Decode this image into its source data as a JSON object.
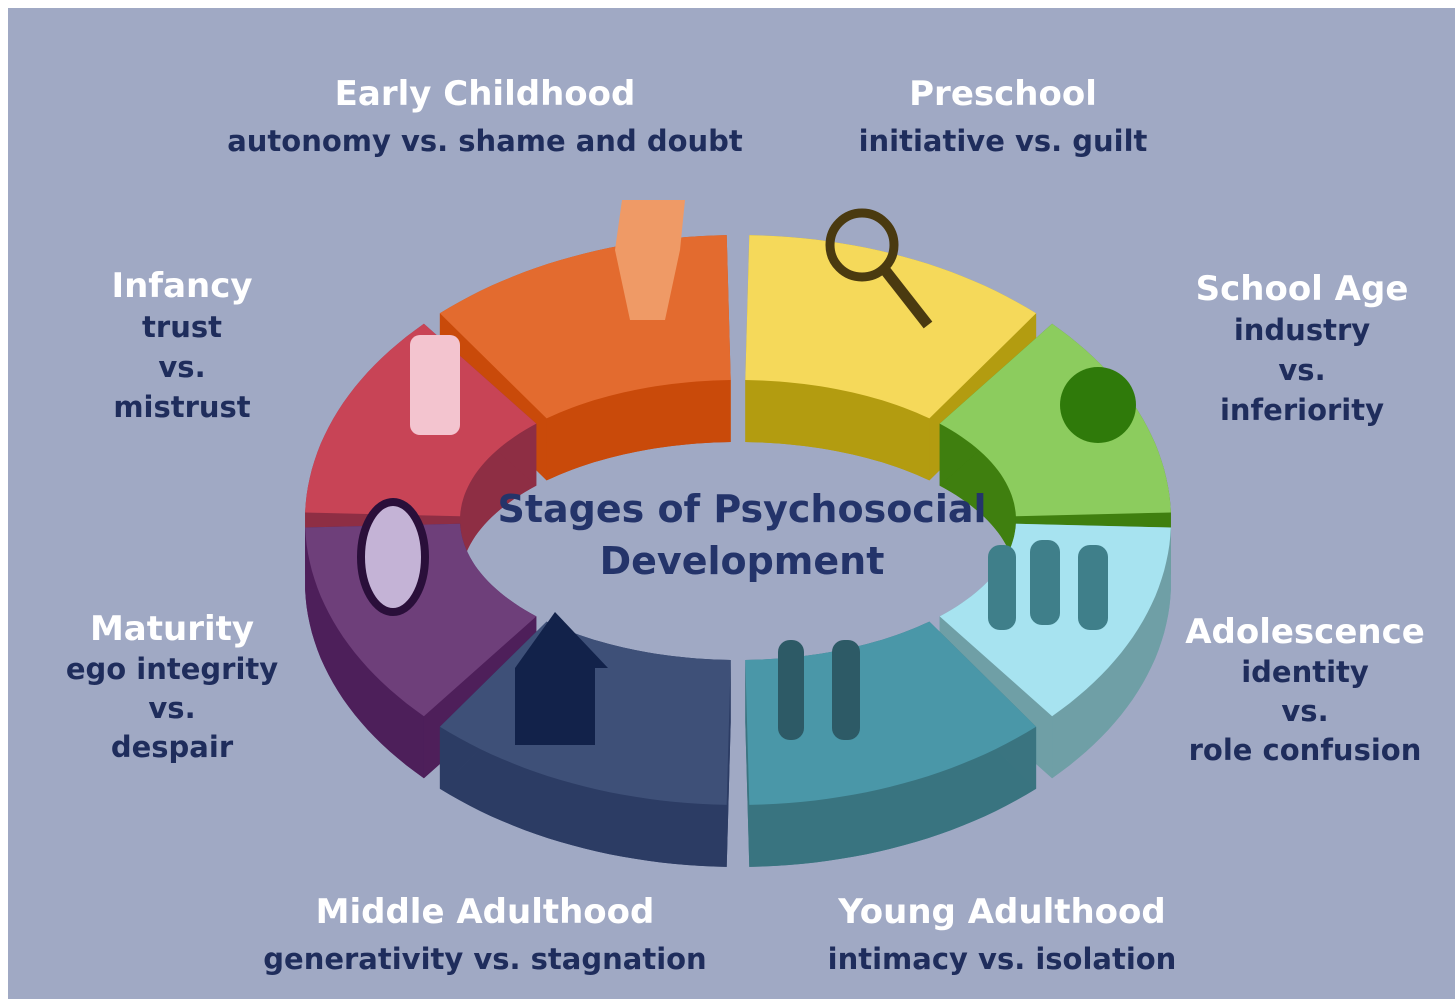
{
  "title_lines": [
    "Stages of Psychosocial",
    "Development"
  ],
  "stages": [
    {
      "name": "Early Childhood",
      "lines": [
        "autonomy vs. shame and doubt"
      ]
    },
    {
      "name": "Preschool",
      "lines": [
        "initiative vs. guilt"
      ]
    },
    {
      "name": "Infancy",
      "lines": [
        "trust",
        "vs.",
        "mistrust"
      ]
    },
    {
      "name": "School Age",
      "lines": [
        "industry",
        "vs.",
        "inferiority"
      ]
    },
    {
      "name": "Maturity",
      "lines": [
        "ego integrity",
        "vs.",
        "despair"
      ]
    },
    {
      "name": "Adolescence",
      "lines": [
        "identity",
        "vs.",
        "role confusion"
      ]
    },
    {
      "name": "Middle Adulthood",
      "lines": [
        "generativity vs. stagnation"
      ]
    },
    {
      "name": "Young Adulthood",
      "lines": [
        "intimacy vs. isolation"
      ]
    }
  ]
}
